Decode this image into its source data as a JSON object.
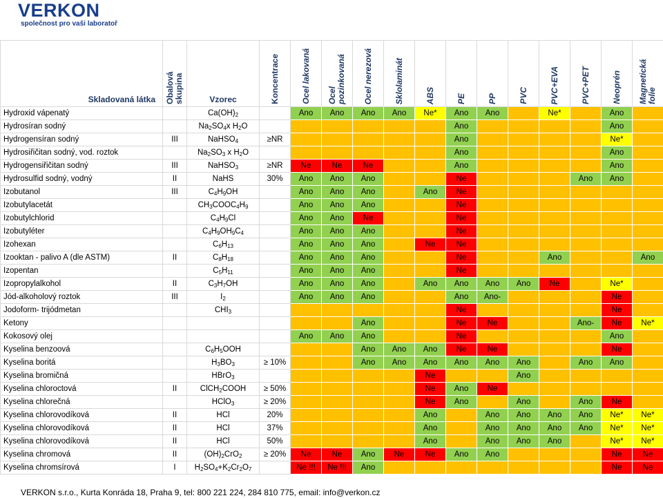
{
  "header": {
    "logo": "VERKON",
    "tagline": "společnost pro vaši laboratoř"
  },
  "table": {
    "columns": [
      "Skladovaná látka",
      "Obalová skupina",
      "Vzorec",
      "Koncentrace",
      "Ocel lakovaná",
      "Ocel pozinkovaná",
      "Ocel nerezová",
      "Sklolaminát",
      "ABS",
      "PE",
      "PP",
      "PVC",
      "PVC+EVA",
      "PVC+PET",
      "Neoprén",
      "Magnetická folie"
    ],
    "rows": [
      [
        "Hydroxid vápenatý",
        null,
        "Ca(OH)2",
        null,
        "Ano",
        "Ano",
        "Ano",
        "Ano",
        "Ne*",
        "Ano",
        "Ano",
        null,
        "Ne*",
        null,
        "Ano",
        null
      ],
      [
        "Hydrosíran sodný",
        null,
        "Na2SO4x H2O",
        null,
        null,
        null,
        null,
        null,
        null,
        "Ano",
        null,
        null,
        null,
        null,
        "Ano",
        null
      ],
      [
        "Hydrogensíran sodný",
        "III",
        "NaHSO4",
        "≥NR",
        null,
        null,
        null,
        null,
        null,
        "Ano",
        null,
        null,
        null,
        null,
        "Ne*",
        null
      ],
      [
        "Hydrosiřičitan sodný, vod. roztok",
        null,
        "Na2SO3 x H2O",
        null,
        null,
        null,
        null,
        null,
        null,
        "Ano",
        null,
        null,
        null,
        null,
        "Ano",
        null
      ],
      [
        "Hydrogensiřičitan sodný",
        "III",
        "NaHSO3",
        "≥NR",
        "Ne",
        "Ne",
        "Ne",
        null,
        null,
        "Ano",
        null,
        null,
        null,
        null,
        "Ano",
        null
      ],
      [
        "Hydrosulfid sodný, vodný",
        "II",
        "NaHS",
        "30%",
        "Ano",
        "Ano",
        "Ano",
        null,
        null,
        "Ne",
        null,
        null,
        null,
        "Ano",
        "Ano",
        null
      ],
      [
        "Izobutanol",
        "III",
        "C4H9OH",
        null,
        "Ano",
        "Ano",
        "Ano",
        null,
        "Ano",
        "Ne",
        null,
        null,
        null,
        null,
        null,
        null
      ],
      [
        "Izobutylacetát",
        null,
        "CH3COOC4H9",
        null,
        "Ano",
        "Ano",
        "Ano",
        null,
        null,
        "Ne",
        null,
        null,
        null,
        null,
        null,
        null
      ],
      [
        "Izobutylchlorid",
        null,
        "C4H9Cl",
        null,
        "Ano",
        "Ano",
        "Ne",
        null,
        null,
        "Ne",
        null,
        null,
        null,
        null,
        null,
        null
      ],
      [
        "Izobutyléter",
        null,
        "C4H9OH9C4",
        null,
        "Ano",
        "Ano",
        "Ano",
        null,
        null,
        "Ne",
        null,
        null,
        null,
        null,
        null,
        null
      ],
      [
        "Izohexan",
        null,
        "C6H13",
        null,
        "Ano",
        "Ano",
        "Ano",
        null,
        "Ne",
        "Ne",
        null,
        null,
        null,
        null,
        null,
        null
      ],
      [
        "Izooktan - palivo A (dle ASTM)",
        "II",
        "C8H18",
        null,
        "Ano",
        "Ano",
        "Ano",
        null,
        null,
        "Ne",
        null,
        null,
        "Ano",
        null,
        null,
        "Ano"
      ],
      [
        "Izopentan",
        null,
        "C5H11",
        null,
        "Ano",
        "Ano",
        "Ano",
        null,
        null,
        "Ne",
        null,
        null,
        null,
        null,
        null,
        null
      ],
      [
        "Izopropylalkohol",
        "II",
        "C3H7OH",
        null,
        "Ano",
        "Ano",
        "Ano",
        null,
        "Ano",
        "Ano",
        "Ano",
        "Ano",
        "Ne",
        null,
        "Ne*",
        null
      ],
      [
        "Jód-alkoholový roztok",
        "III",
        "I2",
        null,
        "Ano",
        "Ano",
        "Ano",
        null,
        null,
        "Ano",
        "Ano-",
        null,
        null,
        null,
        "Ne",
        null
      ],
      [
        "Jodoform- trijódmetan",
        null,
        "CHI3",
        null,
        null,
        null,
        null,
        null,
        null,
        "Ne",
        null,
        null,
        null,
        null,
        "Ne",
        null
      ],
      [
        "Ketony",
        null,
        null,
        null,
        null,
        null,
        "Ano",
        null,
        null,
        "Ne",
        "Ne",
        null,
        null,
        "Ano-",
        "Ne",
        "Ne*"
      ],
      [
        "Kokosový olej",
        null,
        null,
        null,
        "Ano",
        "Ano",
        "Ano",
        null,
        null,
        "Ne",
        null,
        null,
        null,
        null,
        "Ano",
        null
      ],
      [
        "Kyselina benzoová",
        null,
        "C6H5OOH",
        null,
        null,
        null,
        "Ano",
        "Ano",
        "Ano",
        "Ne",
        "Ne",
        null,
        null,
        null,
        "Ne",
        null
      ],
      [
        "Kyselina boritá",
        null,
        "H3BO3",
        "≥ 10%",
        null,
        null,
        "Ano",
        "Ano",
        "Ano",
        "Ano",
        "Ano",
        "Ano",
        null,
        "Ano",
        "Ano",
        null
      ],
      [
        "Kyselina bromičná",
        null,
        "HBrO3",
        null,
        null,
        null,
        null,
        null,
        "Ne",
        null,
        null,
        "Ano",
        null,
        null,
        null,
        null
      ],
      [
        "Kyselina chloroctová",
        "II",
        "ClCH2COOH",
        "≥ 50%",
        null,
        null,
        null,
        null,
        "Ne",
        "Ano",
        "Ne",
        null,
        null,
        null,
        null,
        null
      ],
      [
        "Kyselina chlorečná",
        null,
        "HClO3",
        "≥ 20%",
        null,
        null,
        null,
        null,
        "Ne",
        "Ano",
        null,
        "Ano",
        null,
        "Ano",
        "Ne",
        null
      ],
      [
        "Kyselina chlorovodíková",
        "II",
        "HCl",
        "20%",
        null,
        null,
        null,
        null,
        "Ano",
        null,
        "Ano",
        "Ano",
        "Ano",
        "Ano",
        "Ne*",
        "Ne*"
      ],
      [
        "Kyselina chlorovodíková",
        "II",
        "HCl",
        "37%",
        null,
        null,
        null,
        null,
        "Ano",
        null,
        "Ano",
        "Ano",
        "Ano",
        "Ano",
        "Ne*",
        "Ne*"
      ],
      [
        "Kyselina chlorovodíková",
        "II",
        "HCl",
        "50%",
        null,
        null,
        null,
        null,
        "Ano",
        null,
        "Ano",
        "Ano",
        "Ano",
        null,
        "Ne*",
        "Ne*"
      ],
      [
        "Kyselina chromová",
        "II",
        "(OH)2CrO2",
        "≥ 20%",
        "Ne",
        "Ne",
        "Ano",
        "Ne",
        "Ne",
        "Ano",
        "Ano",
        null,
        null,
        null,
        "Ne",
        "Ne"
      ],
      [
        "Kyselina chromsírová",
        "I",
        "H2SO4+K2Cr2O7",
        null,
        "Ne !!!",
        "Ne !!!",
        "Ano",
        null,
        null,
        null,
        null,
        null,
        null,
        null,
        "Ne",
        "Ne"
      ]
    ]
  },
  "footer": "VERKON s.r.o., Kurta Konráda 18, Praha 9, tel: 800 221 224, 284 810 775, email: info@verkon.cz"
}
